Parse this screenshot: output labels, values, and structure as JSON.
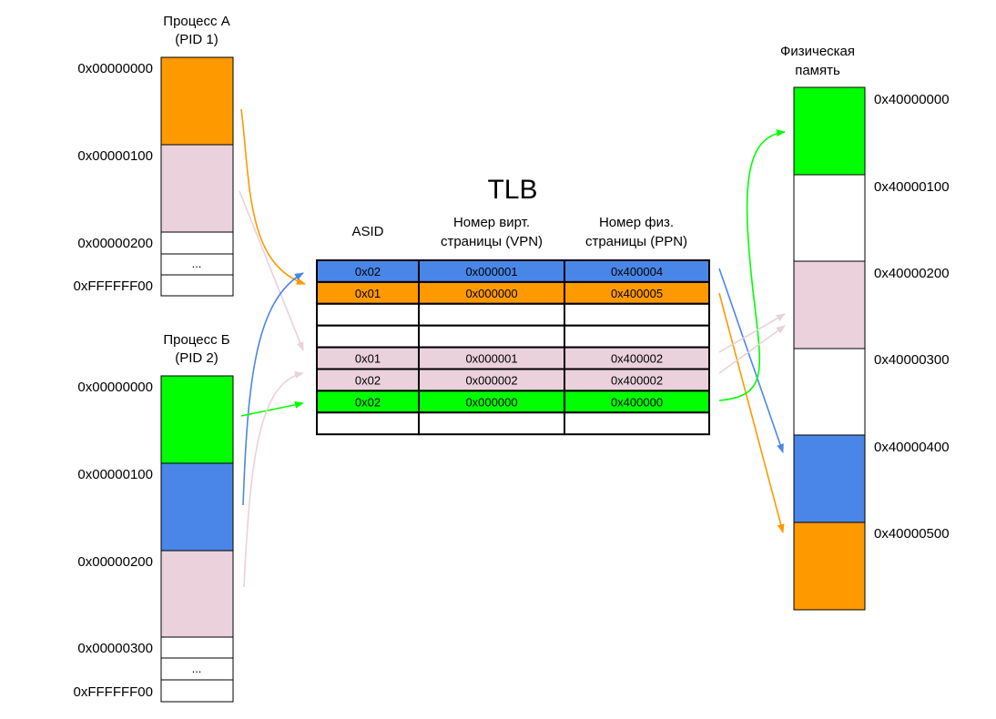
{
  "colors": {
    "orange": "#ff9900",
    "pink": "#ead1dc",
    "green": "#00ff00",
    "blue": "#4a86e8",
    "white": "#ffffff"
  },
  "process_a": {
    "title_line1": "Процесс А",
    "title_line2": "(PID 1)",
    "addresses": [
      "0x00000000",
      "0x00000100",
      "0x00000200",
      "0xFFFFFF00"
    ],
    "ellipsis": "..."
  },
  "process_b": {
    "title_line1": "Процесс Б",
    "title_line2": "(PID 2)",
    "addresses": [
      "0x00000000",
      "0x00000100",
      "0x00000200",
      "0x00000300",
      "0xFFFFFF00"
    ],
    "ellipsis": "..."
  },
  "tlb": {
    "title": "TLB",
    "headers": [
      {
        "line1": "ASID",
        "line2": ""
      },
      {
        "line1": "Номер вирт.",
        "line2": "страницы (VPN)"
      },
      {
        "line1": "Номер физ.",
        "line2": "страницы (PPN)"
      }
    ],
    "rows": [
      {
        "color": "blue",
        "asid": "0x02",
        "vpn": "0x000001",
        "ppn": "0x400004"
      },
      {
        "color": "orange",
        "asid": "0x01",
        "vpn": "0x000000",
        "ppn": "0x400005"
      },
      {
        "color": "white",
        "asid": "",
        "vpn": "",
        "ppn": ""
      },
      {
        "color": "white",
        "asid": "",
        "vpn": "",
        "ppn": ""
      },
      {
        "color": "pink",
        "asid": "0x01",
        "vpn": "0x000001",
        "ppn": "0x400002"
      },
      {
        "color": "pink",
        "asid": "0x02",
        "vpn": "0x000002",
        "ppn": "0x400002"
      },
      {
        "color": "green",
        "asid": "0x02",
        "vpn": "0x000000",
        "ppn": "0x400000"
      },
      {
        "color": "white",
        "asid": "",
        "vpn": "",
        "ppn": ""
      }
    ]
  },
  "physical": {
    "title_line1": "Физическая",
    "title_line2": "память",
    "addresses": [
      "0x40000000",
      "0x40000100",
      "0x40000200",
      "0x40000300",
      "0x40000400",
      "0x40000500"
    ]
  }
}
